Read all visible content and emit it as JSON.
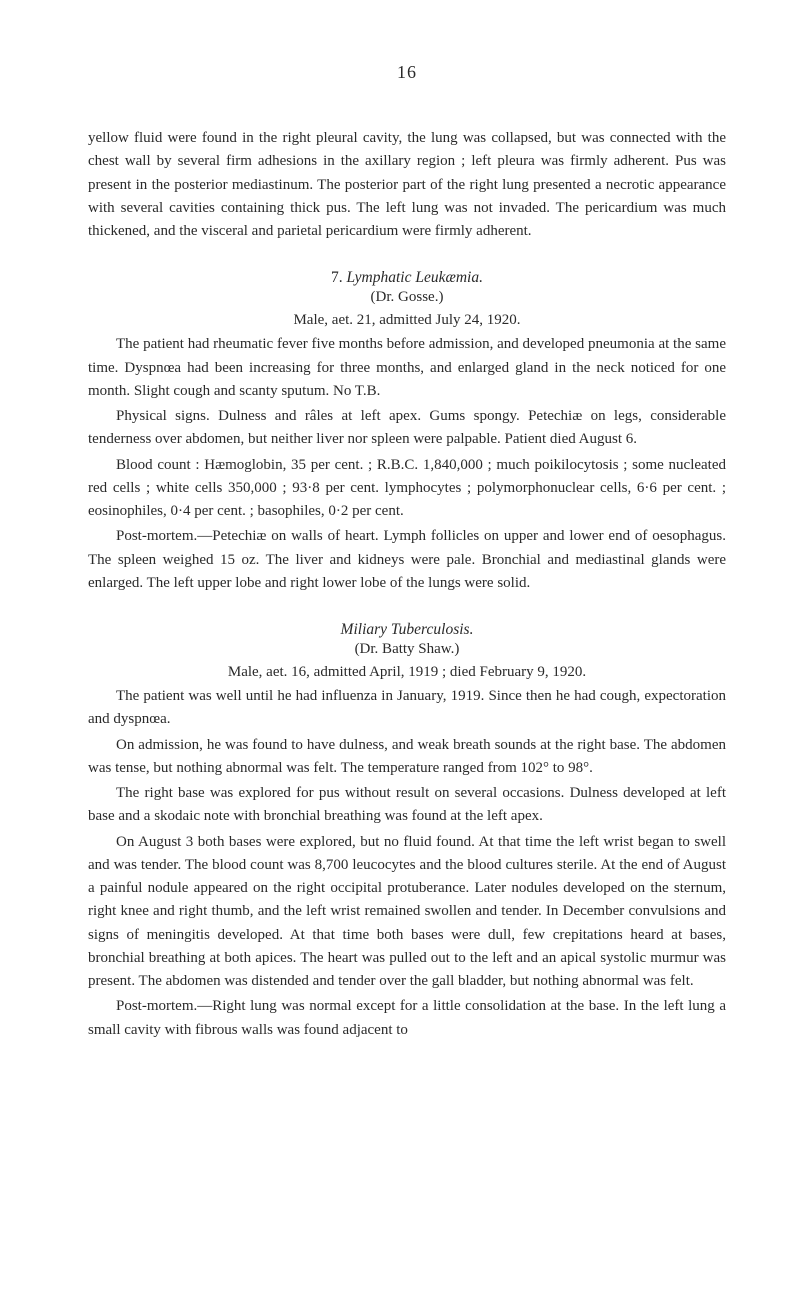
{
  "pageNumber": "16",
  "para1": "yellow fluid were found in the right pleural cavity, the lung was collapsed, but was connected with the chest wall by several firm adhesions in the axillary region ; left pleura was firmly adherent. Pus was present in the posterior mediastinum. The posterior part of the right lung presented a necrotic appear­ance with several cavities containing thick pus. The left lung was not invaded. The pericardium was much thickened, and the visceral and parietal pericardium were firmly adherent.",
  "section1": {
    "num": "7.",
    "title": "Lymphatic Leukæmia.",
    "author": "(Dr. Gosse.)",
    "caseLine": "Male, aet. 21, admitted July 24, 1920."
  },
  "s1p1": "The patient had rheumatic fever five months before admission, and de­veloped pneumonia at the same time. Dyspnœa had been increasing for three months, and enlarged gland in the neck noticed for one month. Slight cough and scanty sputum. No T.B.",
  "s1p2": "Physical signs. Dulness and râles at left apex. Gums spongy. Petechiæ on legs, considerable tenderness over abdomen, but neither liver nor spleen were palpable. Patient died August 6.",
  "s1p3": "Blood count : Hæmoglobin, 35 per cent. ; R.B.C. 1,840,000 ; much poikilo­cytosis ; some nucleated red cells ; white cells 350,000 ; 93·8 per cent. lympho­cytes ; polymorphonuclear cells, 6·6 per cent. ; eosinophiles, 0·4 per cent. ; basophiles, 0·2 per cent.",
  "s1p4": "Post-mortem.—Petechiæ on walls of heart. Lymph follicles on upper and lower end of oesophagus. The spleen weighed 15 oz. The liver and kidneys were pale. Bronchial and mediastinal glands were enlarged. The left upper lobe and right lower lobe of the lungs were solid.",
  "section2": {
    "title": "Miliary Tuberculosis.",
    "author": "(Dr. Batty Shaw.)",
    "caseLine": "Male, aet. 16, admitted April, 1919 ; died February 9, 1920."
  },
  "s2p1": "The patient was well until he had influenza in January, 1919. Since then he had cough, expectoration and dyspnœa.",
  "s2p2": "On admission, he was found to have dulness, and weak breath sounds at the right base. The abdomen was tense, but nothing abnormal was felt. The temperature ranged from 102° to 98°.",
  "s2p3": "The right base was explored for pus without result on several occasions. Dulness developed at left base and a skodaic note with bronchial breathing was found at the left apex.",
  "s2p4": "On August 3 both bases were explored, but no fluid found. At that time the left wrist began to swell and was tender. The blood count was 8,700 leucocytes and the blood cultures sterile. At the end of August a painful nodule appeared on the right occipital protuberance. Later nodules developed on the sternum, right knee and right thumb, and the left wrist remained swollen and tender. In December convulsions and signs of meningitis de­veloped. At that time both bases were dull, few crepitations heard at bases, bronchial breathing at both apices. The heart was pulled out to the left and an apical systolic murmur was present. The abdomen was distended and tender over the gall bladder, but nothing abnormal was felt.",
  "s2p5": "Post-mortem.—Right lung was normal except for a little consolidation at the base. In the left lung a small cavity with fibrous walls was found adjacent to"
}
